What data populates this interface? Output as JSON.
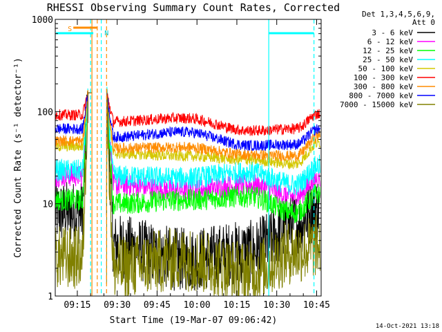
{
  "chart_data": {
    "type": "line",
    "title": "RHESSI Observing Summary Count Rates, Corrected",
    "xlabel": "Start Time (19-Mar-07 09:06:42)",
    "ylabel": "Corrected Count Rate (s⁻¹ detector⁻¹)",
    "yscale": "log",
    "ylim": [
      1,
      1000
    ],
    "xlim_minutes_after_09_00": [
      6.7,
      106.7
    ],
    "x_ticks": [
      "09:15",
      "09:30",
      "09:45",
      "10:00",
      "10:15",
      "10:30",
      "10:45"
    ],
    "y_ticks": [
      "1",
      "10",
      "100",
      "1000"
    ],
    "legend_header": [
      "Det 1,3,4,5,6,9,",
      "Att 0"
    ],
    "legend_position": "right",
    "grid": false,
    "timestamp": "14-Oct-2021 13:18",
    "flags": [
      {
        "label": "S",
        "start": "09:13:30",
        "end": "09:22:30",
        "color": "#ff8c00"
      },
      {
        "label": "N",
        "start": "09:22:30",
        "end": "09:26:00",
        "color": "#00cccc"
      }
    ],
    "gaps": [
      {
        "start": "09:07",
        "end": "09:21",
        "color": "#00ffff",
        "note": "bar"
      },
      {
        "start": "10:27",
        "end": "10:44",
        "color": "#00ffff",
        "note": "bar"
      }
    ],
    "vertical_markers": [
      {
        "time": "09:20",
        "color": "#00ffff",
        "style": "dash"
      },
      {
        "time": "09:22:30",
        "color": "#ff8c00",
        "style": "dash"
      },
      {
        "time": "09:24",
        "color": "#00ffff",
        "style": "dash"
      },
      {
        "time": "09:26",
        "color": "#ff8c00",
        "style": "dash"
      },
      {
        "time": "09:20:30",
        "color": "#ff8c00",
        "style": "solid"
      },
      {
        "time": "10:27",
        "color": "#00ffff",
        "style": "solid"
      },
      {
        "time": "10:44",
        "color": "#00ffff",
        "style": "dash"
      }
    ],
    "series": [
      {
        "name": "3 - 6 keV",
        "color": "#000000",
        "levels": [
          8,
          160,
          3.5,
          2.5,
          3.0,
          6.0,
          9.0
        ]
      },
      {
        "name": "6 - 12 keV",
        "color": "#ff00ff",
        "levels": [
          20,
          160,
          16,
          14,
          16,
          12,
          19
        ]
      },
      {
        "name": "12 - 25 keV",
        "color": "#00ff00",
        "levels": [
          11,
          160,
          10,
          11,
          12,
          8,
          13
        ]
      },
      {
        "name": "25 - 50 keV",
        "color": "#00ffff",
        "levels": [
          23,
          160,
          20,
          19,
          22,
          16,
          26
        ]
      },
      {
        "name": "50 - 100 keV",
        "color": "#d4c800",
        "levels": [
          42,
          160,
          35,
          33,
          30,
          27,
          46
        ]
      },
      {
        "name": "100 - 300 keV",
        "color": "#ff0000",
        "levels": [
          92,
          160,
          78,
          85,
          62,
          65,
          95
        ]
      },
      {
        "name": "300 - 800 keV",
        "color": "#ff8c00",
        "levels": [
          48,
          160,
          40,
          41,
          34,
          33,
          55
        ]
      },
      {
        "name": "800 - 7000 keV",
        "color": "#0000ff",
        "levels": [
          65,
          160,
          53,
          60,
          43,
          44,
          65
        ]
      },
      {
        "name": "7000 - 15000 keV",
        "color": "#808000",
        "levels": [
          2.6,
          160,
          2.0,
          2.5,
          1.8,
          3.0,
          3.5
        ]
      }
    ],
    "level_times_min": [
      8,
      20,
      28,
      55,
      80,
      97,
      106
    ],
    "note": "levels are approximate count rates at the times in level_times_min (minutes after 09:00); the second level is the peak before the data gap"
  }
}
